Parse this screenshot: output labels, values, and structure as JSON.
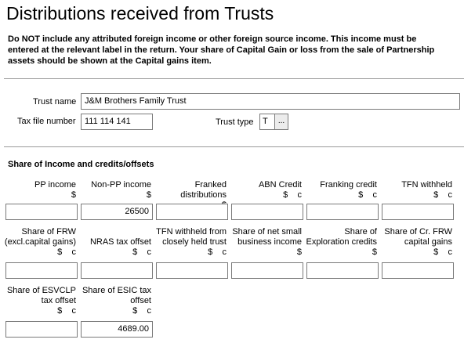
{
  "page": {
    "title": "Distributions received from Trusts",
    "notice": "Do NOT include any attributed foreign income or other foreign source income. This income must be entered at the relevant label in the return.  Your share of Capital Gain or loss from the sale of Partnership assets should be shown at the Capital gains item."
  },
  "trust": {
    "name_label": "Trust name",
    "name_value": "J&M Brothers Family Trust",
    "tfn_label": "Tax file number",
    "tfn_value": "111 114 141",
    "type_label": "Trust type",
    "type_value": "T",
    "type_button": "..."
  },
  "income": {
    "section_title": "Share of Income and credits/offsets",
    "row1": [
      {
        "label": "PP income",
        "unit": "$",
        "value": ""
      },
      {
        "label": "Non-PP income",
        "unit": "$",
        "value": "26500"
      },
      {
        "label": "Franked distributions",
        "unit": "$",
        "value": ""
      },
      {
        "label": "ABN Credit",
        "unit": "$    c",
        "value": ""
      },
      {
        "label": "Franking credit",
        "unit": "$    c",
        "value": ""
      },
      {
        "label": "TFN withheld",
        "unit": "$    c",
        "value": ""
      }
    ],
    "row2": [
      {
        "label": "Share of FRW (excl.capital gains)",
        "unit": "$    c",
        "value": ""
      },
      {
        "label": "NRAS tax offset",
        "unit": "$    c",
        "value": ""
      },
      {
        "label": "TFN withheld from closely held trust",
        "unit": "$    c",
        "value": ""
      },
      {
        "label": "Share of net small business income",
        "unit": "$",
        "value": ""
      },
      {
        "label": "Share of Exploration credits",
        "unit": "$",
        "value": ""
      },
      {
        "label": "Share of Cr. FRW capital gains",
        "unit": "$    c",
        "value": ""
      }
    ],
    "row3": [
      {
        "label": "Share of ESVCLP tax offset",
        "unit": "$    c",
        "value": ""
      },
      {
        "label": "Share of ESIC tax offset",
        "unit": "$    c",
        "value": "4689.00"
      }
    ]
  }
}
